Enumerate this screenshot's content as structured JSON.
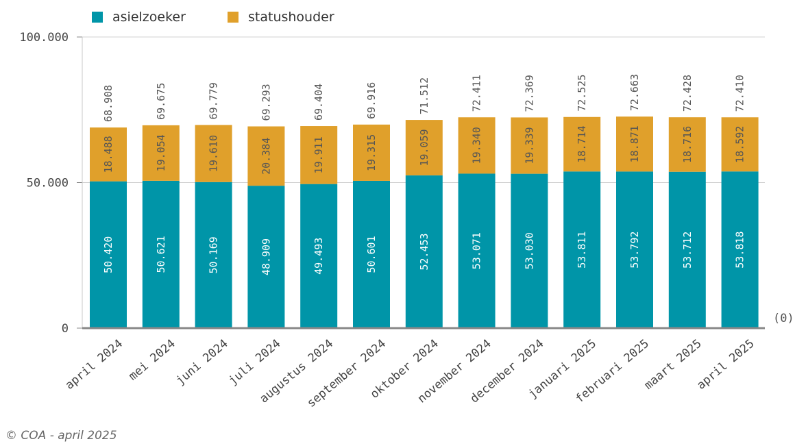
{
  "chart_data": {
    "type": "bar",
    "stacked": true,
    "categories": [
      "april 2024",
      "mei 2024",
      "juni 2024",
      "juli 2024",
      "augustus 2024",
      "september 2024",
      "oktober 2024",
      "november 2024",
      "december 2024",
      "januari 2025",
      "februari 2025",
      "maart 2025",
      "april 2025"
    ],
    "series": [
      {
        "name": "asielzoeker",
        "color": "#0095a8",
        "values": [
          50420,
          50621,
          50169,
          48909,
          49493,
          50601,
          52453,
          53071,
          53030,
          53811,
          53792,
          53712,
          53818
        ]
      },
      {
        "name": "statushouder",
        "color": "#e0a02b",
        "values": [
          18488,
          19054,
          19610,
          20384,
          19911,
          19315,
          19059,
          19340,
          19339,
          18714,
          18871,
          18716,
          18592
        ]
      }
    ],
    "totals": [
      68908,
      69675,
      69779,
      69293,
      69404,
      69916,
      71512,
      72411,
      72369,
      72525,
      72663,
      72428,
      72410
    ],
    "value_labels": {
      "asielzoeker": [
        "50.420",
        "50.621",
        "50.169",
        "48.909",
        "49.493",
        "50.601",
        "52.453",
        "53.071",
        "53.030",
        "53.811",
        "53.792",
        "53.712",
        "53.818"
      ],
      "statushouder": [
        "18.488",
        "19.054",
        "19.610",
        "20.384",
        "19.911",
        "19.315",
        "19.059",
        "19.340",
        "19.339",
        "18.714",
        "18.871",
        "18.716",
        "18.592"
      ],
      "totals": [
        "68.908",
        "69.675",
        "69.779",
        "69.293",
        "69.404",
        "69.916",
        "71.512",
        "72.411",
        "72.369",
        "72.525",
        "72.663",
        "72.428",
        "72.410"
      ]
    },
    "y_ticks": [
      0,
      50000,
      100000
    ],
    "y_tick_labels": [
      "0",
      "50.000",
      "100.000"
    ],
    "ylim": [
      0,
      100000
    ],
    "grid": true,
    "legend_position": "top-left",
    "axis_note": "(0)"
  },
  "footer": "© COA - april 2025"
}
